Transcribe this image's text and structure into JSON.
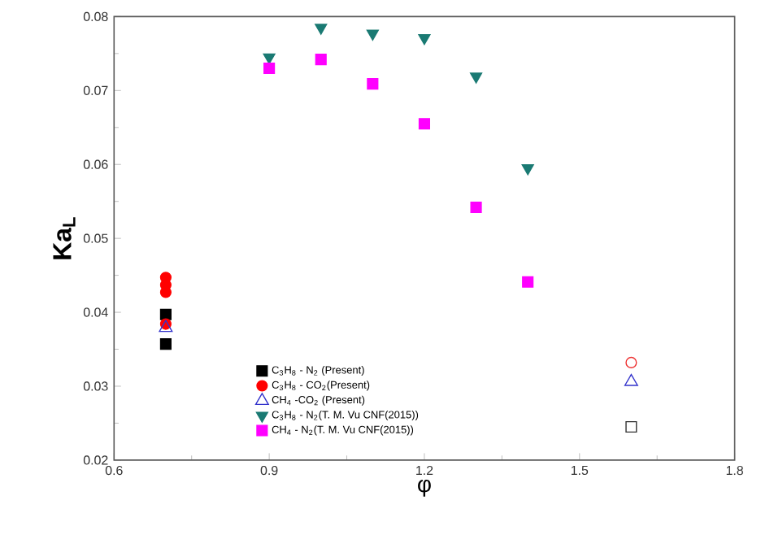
{
  "chart_data": {
    "type": "scatter",
    "xlabel": "φ",
    "ylabel": "**Ka$_{L}$**",
    "xlim": [
      0.6,
      1.8
    ],
    "xticks": [
      0.6,
      0.9,
      1.2,
      1.5,
      1.8
    ],
    "ylim": [
      0.02,
      0.08
    ],
    "yticks": [
      0.02,
      0.03,
      0.04,
      0.05,
      0.06,
      0.07,
      0.08
    ],
    "legend": "bottom left",
    "grid": false,
    "series": [
      {
        "name": "C$_{3}$H$_{8}$ - N$_{2}$ (Present)",
        "color": "#000000",
        "marker": "square",
        "x": [
          0.7,
          0.7
        ],
        "values": [
          0.0397,
          0.0357
        ]
      },
      {
        "name": "C$_{3}$H$_{8}$ - CO$_{2}$(Present)",
        "color": "#ff0000",
        "marker": "circle",
        "x": [
          0.7,
          0.7,
          0.7,
          0.7
        ],
        "values": [
          0.0447,
          0.0437,
          0.0427,
          0.0384
        ]
      },
      {
        "name": "CH$_{4}$ -CO$_{2}$ (Present)",
        "color": "#3333cc",
        "marker": "triangle_open",
        "x": [
          0.7
        ],
        "values": [
          0.0379
        ]
      },
      {
        "name": "C$_{3}$H$_{8}$ - N$_{2}$(T. M. Vu CNF(2015))",
        "color": "#1a7a73",
        "marker": "triangle_down",
        "x": [
          0.9,
          1.0,
          1.1,
          1.2,
          1.3,
          1.4
        ],
        "values": [
          0.0745,
          0.0785,
          0.0777,
          0.0771,
          0.0719,
          0.0595
        ]
      },
      {
        "name": "CH$_{4}$ - N$_{2}$(T. M. Vu CNF(2015))",
        "color": "#ff00ff",
        "marker": "square",
        "x": [
          0.9,
          1.0,
          1.1,
          1.2,
          1.3,
          1.4
        ],
        "values": [
          0.073,
          0.0742,
          0.0709,
          0.0655,
          0.0542,
          0.0441
        ]
      },
      {
        "color": "#ee3333",
        "marker": "circle_open",
        "x": [
          1.6
        ],
        "values": [
          0.0332
        ]
      },
      {
        "color": "#3333cc",
        "marker": "triangle_open",
        "x": [
          1.6
        ],
        "values": [
          0.0306
        ]
      },
      {
        "color": "#333333",
        "marker": "square_open",
        "x": [
          1.6
        ],
        "values": [
          0.0245
        ]
      }
    ]
  }
}
